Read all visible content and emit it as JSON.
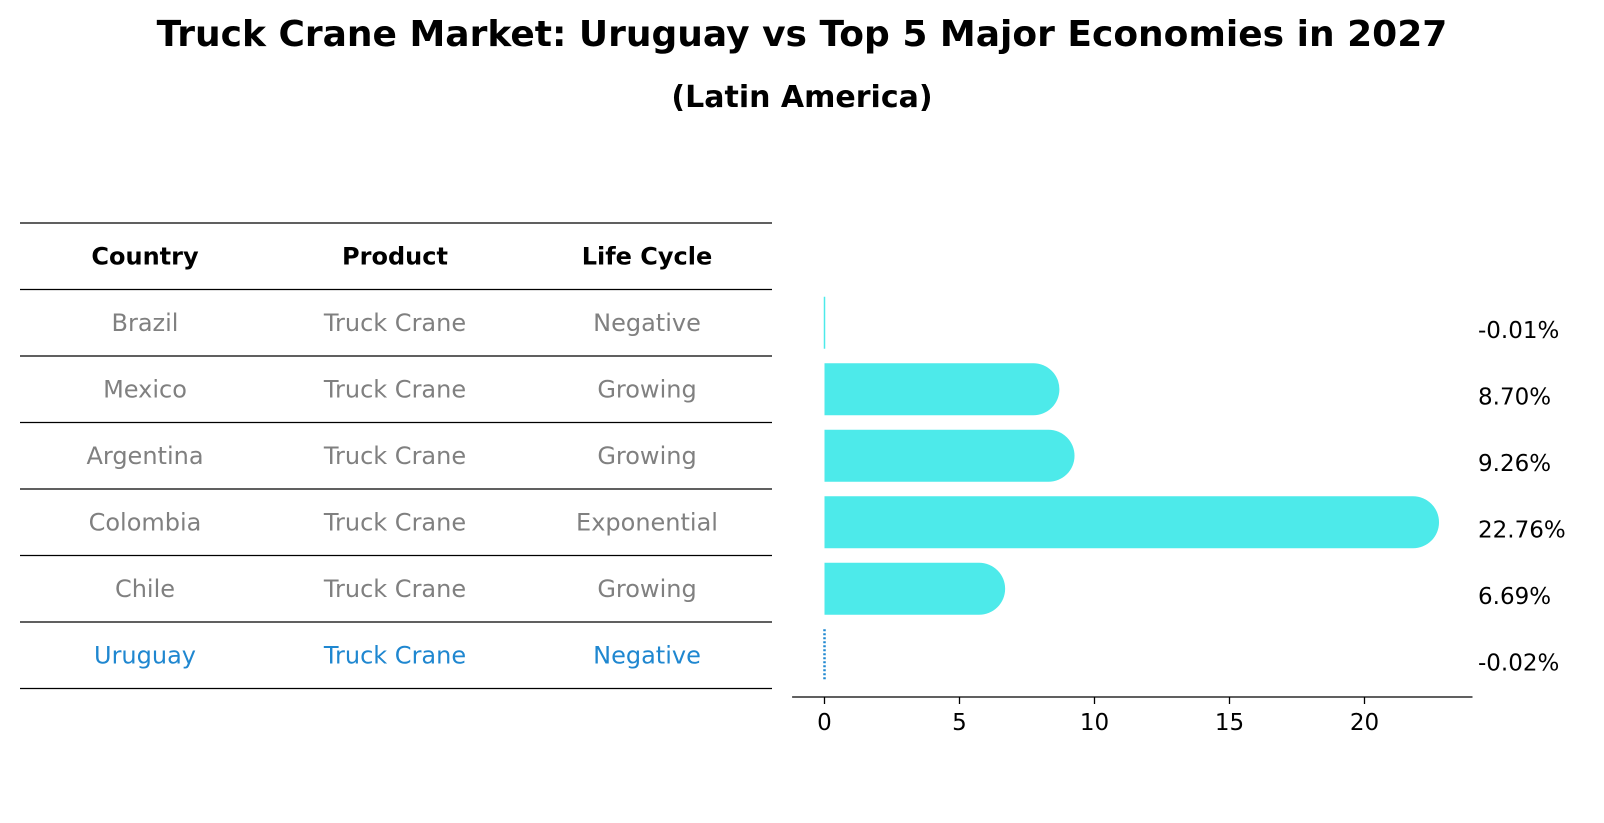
{
  "title": "Truck Crane Market: Uruguay vs Top 5 Major Economies in 2027",
  "subtitle": "(Latin America)",
  "table": {
    "headers": [
      "Country",
      "Product",
      "Life Cycle"
    ],
    "rows": [
      {
        "country": "Brazil",
        "product": "Truck Crane",
        "life_cycle": "Negative",
        "highlight": false
      },
      {
        "country": "Mexico",
        "product": "Truck Crane",
        "life_cycle": "Growing",
        "highlight": false
      },
      {
        "country": "Argentina",
        "product": "Truck Crane",
        "life_cycle": "Growing",
        "highlight": false
      },
      {
        "country": "Colombia",
        "product": "Truck Crane",
        "life_cycle": "Exponential",
        "highlight": false
      },
      {
        "country": "Chile",
        "product": "Truck Crane",
        "life_cycle": "Growing",
        "highlight": false
      },
      {
        "country": "Uruguay",
        "product": "Truck Crane",
        "life_cycle": "Negative",
        "highlight": true
      }
    ]
  },
  "chart_data": {
    "type": "bar",
    "orientation": "horizontal",
    "categories": [
      "Brazil",
      "Mexico",
      "Argentina",
      "Colombia",
      "Chile",
      "Uruguay"
    ],
    "values": [
      -0.01,
      8.7,
      9.26,
      22.76,
      6.69,
      -0.02
    ],
    "value_labels": [
      "-0.01%",
      "8.70%",
      "9.26%",
      "22.76%",
      "6.69%",
      "-0.02%"
    ],
    "xlim": [
      -1.2,
      24
    ],
    "xticks": [
      0,
      5,
      10,
      15,
      20
    ],
    "grid": false,
    "legend": "none",
    "bar_style": "rounded-end"
  },
  "colors": {
    "bar": "#4deaea",
    "highlight_text": "#1f87d0",
    "muted_text": "#808080",
    "rule": "#000000"
  }
}
